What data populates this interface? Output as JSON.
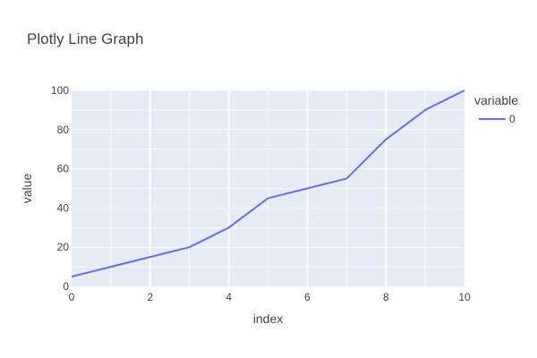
{
  "chart_data": {
    "type": "line",
    "title": "Plotly Line Graph",
    "xlabel": "index",
    "ylabel": "value",
    "xlim": [
      0,
      10
    ],
    "ylim": [
      0,
      100
    ],
    "x_ticks": [
      0,
      2,
      4,
      6,
      8,
      10
    ],
    "y_ticks": [
      0,
      20,
      40,
      60,
      80,
      100
    ],
    "grid": true,
    "legend_position": "right",
    "legend_title": "variable",
    "plot_background": "#E5ECF6",
    "series": [
      {
        "name": "0",
        "color": "#636EFA",
        "x": [
          0,
          1,
          2,
          3,
          4,
          5,
          6,
          7,
          8,
          9,
          10
        ],
        "values": [
          5,
          10,
          15,
          20,
          30,
          45,
          50,
          55,
          75,
          90,
          100
        ]
      }
    ]
  }
}
